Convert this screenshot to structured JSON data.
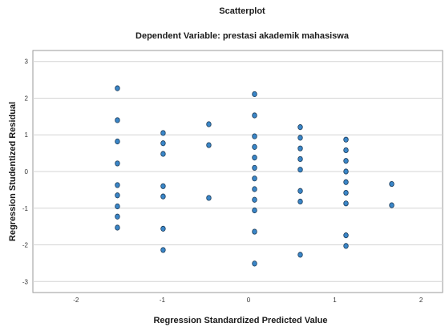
{
  "chart_data": {
    "type": "scatter",
    "title": "Scatterplot",
    "subtitle": "Dependent Variable: prestasi akademik mahasiswa",
    "xlabel": "Regression Standardized Predicted Value",
    "ylabel": "Regression Studentized Residual",
    "xlim": [
      -2.5,
      2.25
    ],
    "ylim": [
      -3.3,
      3.3
    ],
    "xticks": [
      -2,
      -1,
      0,
      1,
      2
    ],
    "yticks": [
      -3,
      -2,
      -1,
      0,
      1,
      2,
      3
    ],
    "xtick_labels": [
      "-2",
      "-1",
      "0",
      "1",
      "2"
    ],
    "ytick_labels": [
      "-3",
      "-2",
      "-1",
      "0",
      "1",
      "2",
      "3"
    ],
    "grid": "horizontal",
    "marker_color": "#3a86c8",
    "marker_edge": "#1b3a57",
    "points": [
      {
        "x": -1.52,
        "y": 2.27
      },
      {
        "x": -1.52,
        "y": 1.4
      },
      {
        "x": -1.52,
        "y": 0.82
      },
      {
        "x": -1.52,
        "y": 0.22
      },
      {
        "x": -1.52,
        "y": -0.37
      },
      {
        "x": -1.52,
        "y": -0.65
      },
      {
        "x": -1.52,
        "y": -0.95
      },
      {
        "x": -1.52,
        "y": -1.23
      },
      {
        "x": -1.52,
        "y": -1.53
      },
      {
        "x": -0.99,
        "y": 1.05
      },
      {
        "x": -0.99,
        "y": 0.77
      },
      {
        "x": -0.99,
        "y": 0.48
      },
      {
        "x": -0.99,
        "y": -0.4
      },
      {
        "x": -0.99,
        "y": -0.68
      },
      {
        "x": -0.99,
        "y": -1.56
      },
      {
        "x": -0.99,
        "y": -2.14
      },
      {
        "x": -0.46,
        "y": 1.29
      },
      {
        "x": -0.46,
        "y": 0.72
      },
      {
        "x": -0.46,
        "y": -0.72
      },
      {
        "x": 0.07,
        "y": 2.11
      },
      {
        "x": 0.07,
        "y": 1.53
      },
      {
        "x": 0.07,
        "y": 0.96
      },
      {
        "x": 0.07,
        "y": 0.67
      },
      {
        "x": 0.07,
        "y": 0.38
      },
      {
        "x": 0.07,
        "y": 0.1
      },
      {
        "x": 0.07,
        "y": -0.19
      },
      {
        "x": 0.07,
        "y": -0.48
      },
      {
        "x": 0.07,
        "y": -0.77
      },
      {
        "x": 0.07,
        "y": -1.06
      },
      {
        "x": 0.07,
        "y": -1.64
      },
      {
        "x": 0.07,
        "y": -2.51
      },
      {
        "x": 0.6,
        "y": 1.21
      },
      {
        "x": 0.6,
        "y": 0.92
      },
      {
        "x": 0.6,
        "y": 0.63
      },
      {
        "x": 0.6,
        "y": 0.34
      },
      {
        "x": 0.6,
        "y": 0.05
      },
      {
        "x": 0.6,
        "y": -0.53
      },
      {
        "x": 0.6,
        "y": -0.82
      },
      {
        "x": 0.6,
        "y": -2.27
      },
      {
        "x": 1.13,
        "y": 0.87
      },
      {
        "x": 1.13,
        "y": 0.58
      },
      {
        "x": 1.13,
        "y": 0.29
      },
      {
        "x": 1.13,
        "y": 0.0
      },
      {
        "x": 1.13,
        "y": -0.29
      },
      {
        "x": 1.13,
        "y": -0.58
      },
      {
        "x": 1.13,
        "y": -0.87
      },
      {
        "x": 1.13,
        "y": -1.74
      },
      {
        "x": 1.13,
        "y": -2.03
      },
      {
        "x": 1.66,
        "y": -0.34
      },
      {
        "x": 1.66,
        "y": -0.92
      }
    ]
  }
}
